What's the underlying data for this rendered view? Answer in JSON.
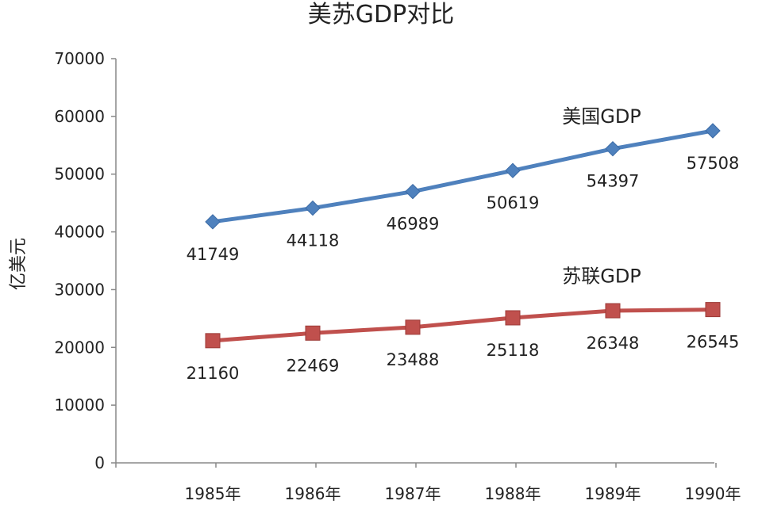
{
  "chart_data": {
    "type": "line",
    "title": "美苏GDP对比",
    "xlabel": "",
    "ylabel": "亿美元",
    "categories": [
      "1985年",
      "1986年",
      "1987年",
      "1988年",
      "1989年",
      "1990年"
    ],
    "ylim": [
      0,
      70000
    ],
    "yticks": [
      "0",
      "10000",
      "20000",
      "30000",
      "40000",
      "50000",
      "60000",
      "70000"
    ],
    "grid": false,
    "legend": "inline labels near series",
    "series": [
      {
        "name": "美国GDP",
        "color": "#4F81BD",
        "marker": "diamond",
        "values": [
          41749,
          44118,
          46989,
          50619,
          54397,
          57508
        ],
        "labels": [
          "41749",
          "44118",
          "46989",
          "50619",
          "54397",
          "57508"
        ]
      },
      {
        "name": "苏联GDP",
        "color": "#C0504D",
        "marker": "square",
        "values": [
          21160,
          22469,
          23488,
          25118,
          26348,
          26545
        ],
        "labels": [
          "21160",
          "22469",
          "23488",
          "25118",
          "26348",
          "26545"
        ]
      }
    ]
  }
}
